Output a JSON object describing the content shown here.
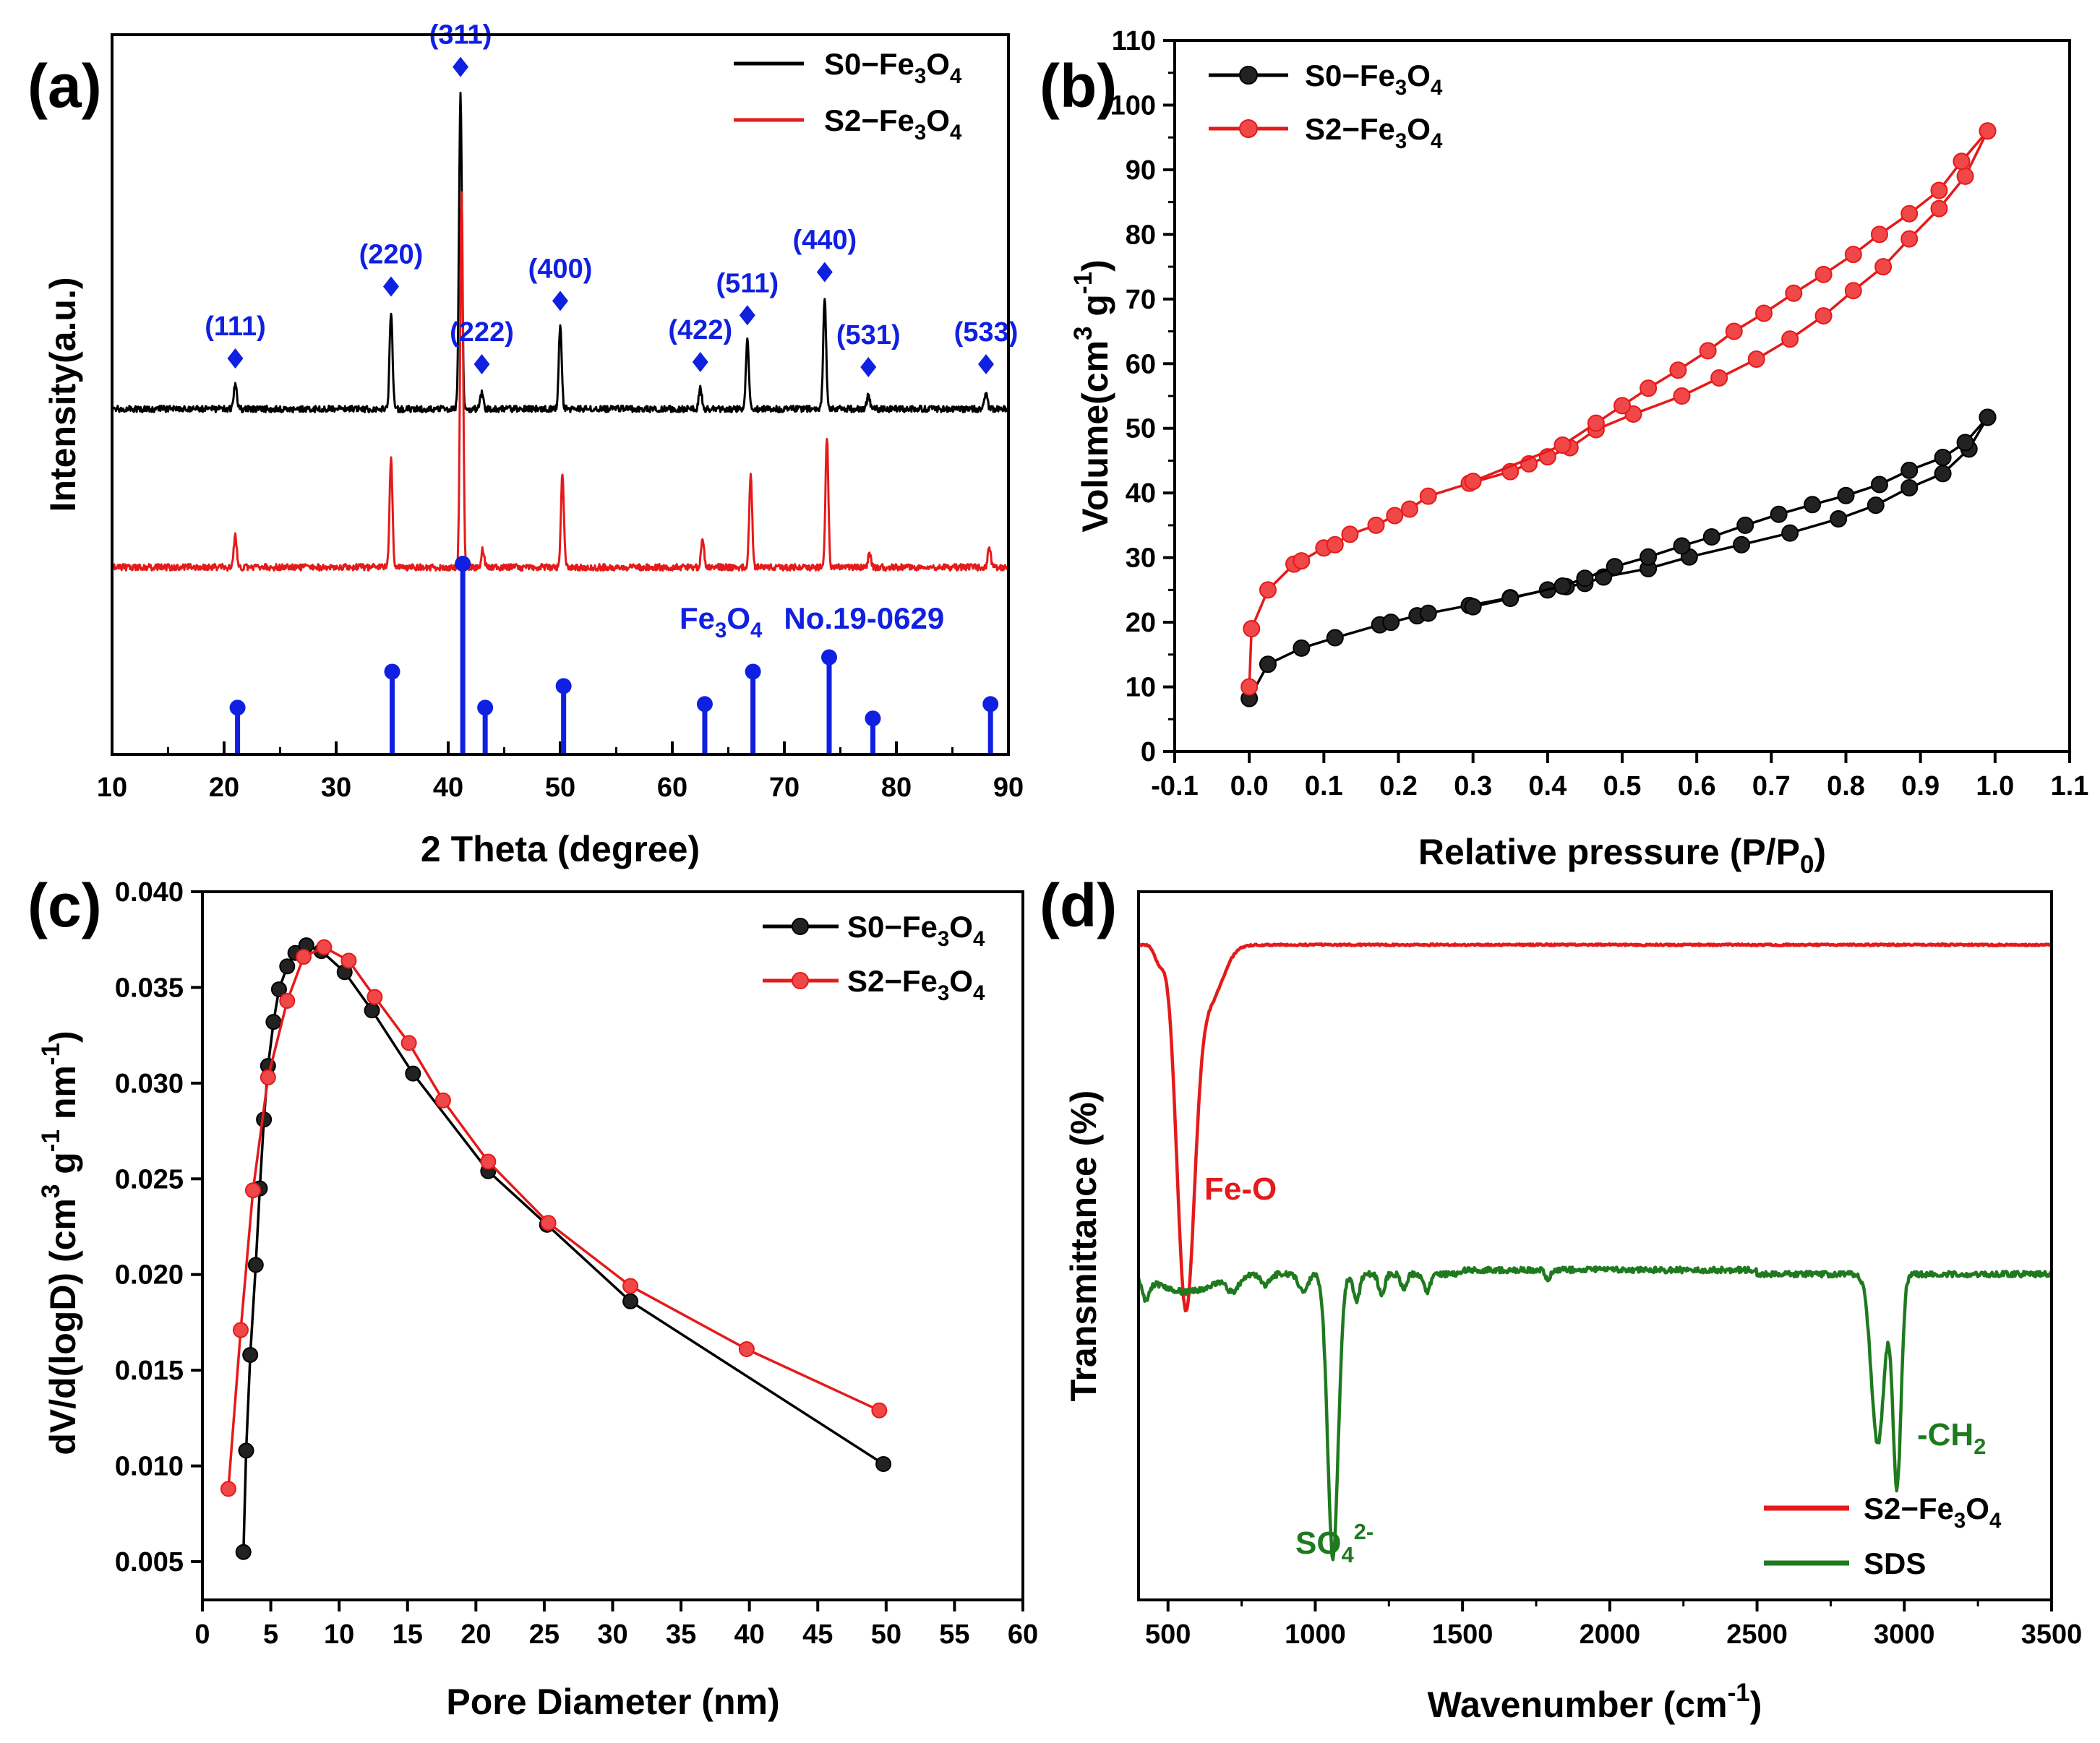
{
  "colors": {
    "black_series": "#000000",
    "red_series": "#e51a1a",
    "blue_ref": "#1020e0",
    "green_series": "#1f7a1f",
    "axis": "#000000",
    "background": "#ffffff"
  },
  "chart_data": [
    {
      "panel": "(a)",
      "type": "line",
      "title": "",
      "xlabel": "2 Theta (degree)",
      "ylabel": "Intensity(a.u.)",
      "xlim": [
        10,
        90
      ],
      "ylim": [
        0,
        100
      ],
      "xticks": [
        10,
        20,
        30,
        40,
        50,
        60,
        70,
        80,
        90
      ],
      "grid": false,
      "legend": {
        "placement": "top-right",
        "entries": [
          "S0−Fe3O4",
          "S2−Fe3O4"
        ]
      },
      "series": [
        {
          "name": "S0−Fe3O4",
          "color": "#000000",
          "baseline": 48,
          "peaks": [
            {
              "x": 21.0,
              "h": 3.5
            },
            {
              "x": 34.9,
              "h": 13.5
            },
            {
              "x": 41.1,
              "h": 44
            },
            {
              "x": 43.0,
              "h": 2.2
            },
            {
              "x": 50.0,
              "h": 11.5
            },
            {
              "x": 62.5,
              "h": 3.0
            },
            {
              "x": 66.7,
              "h": 9.5
            },
            {
              "x": 73.6,
              "h": 15.5
            },
            {
              "x": 77.5,
              "h": 1.8
            },
            {
              "x": 88.0,
              "h": 2.2
            }
          ]
        },
        {
          "name": "S2−Fe3O4",
          "color": "#e51a1a",
          "baseline": 26,
          "peaks": [
            {
              "x": 21.0,
              "h": 4.5
            },
            {
              "x": 34.9,
              "h": 15
            },
            {
              "x": 41.2,
              "h": 52
            },
            {
              "x": 43.1,
              "h": 2.5
            },
            {
              "x": 50.2,
              "h": 13
            },
            {
              "x": 62.7,
              "h": 4.2
            },
            {
              "x": 67.0,
              "h": 13
            },
            {
              "x": 73.8,
              "h": 18
            },
            {
              "x": 77.6,
              "h": 2.0
            },
            {
              "x": 88.3,
              "h": 2.8
            }
          ]
        }
      ],
      "hkl_markers": [
        {
          "label": "(111)",
          "x": 21.0
        },
        {
          "label": "(220)",
          "x": 34.9
        },
        {
          "label": "(311)",
          "x": 41.1
        },
        {
          "label": "(222)",
          "x": 43.0
        },
        {
          "label": "(400)",
          "x": 50.0
        },
        {
          "label": "(422)",
          "x": 62.5
        },
        {
          "label": "(511)",
          "x": 66.7
        },
        {
          "label": "(440)",
          "x": 73.6
        },
        {
          "label": "(531)",
          "x": 77.5
        },
        {
          "label": "(533)",
          "x": 88.0
        }
      ],
      "reference": {
        "name": "Fe3O4 No.19-0629",
        "label_main": "Fe",
        "label_sub1": "3",
        "label_mid": "O",
        "label_sub2": "4",
        "label_tail": "No.19-0629",
        "color": "#1020e0",
        "lines": [
          {
            "x": 21.2,
            "h": 6.5
          },
          {
            "x": 35.0,
            "h": 11.5
          },
          {
            "x": 41.3,
            "h": 26.5
          },
          {
            "x": 43.3,
            "h": 6.5
          },
          {
            "x": 50.3,
            "h": 9.5
          },
          {
            "x": 62.9,
            "h": 7
          },
          {
            "x": 67.2,
            "h": 11.5
          },
          {
            "x": 74.0,
            "h": 13.5
          },
          {
            "x": 77.9,
            "h": 5
          },
          {
            "x": 88.4,
            "h": 7
          }
        ]
      }
    },
    {
      "panel": "(b)",
      "type": "line",
      "title": "",
      "xlabel": "Relative pressure (P/P0)",
      "xlabel_main": "Relative pressure (P/P",
      "xlabel_sub": "0",
      "xlabel_tail": ")",
      "ylabel": "Volume(cm3 g-1)",
      "ylabel_main": "Volume(cm",
      "ylabel_sup1": "3",
      "ylabel_mid": " g",
      "ylabel_sup2": "-1",
      "ylabel_tail": ")",
      "xlim": [
        -0.1,
        1.1
      ],
      "ylim": [
        0,
        110
      ],
      "xticks": [
        -0.1,
        0.0,
        0.1,
        0.2,
        0.3,
        0.4,
        0.5,
        0.6,
        0.7,
        0.8,
        0.9,
        1.0,
        1.1
      ],
      "xtick_labels": [
        "-0.1",
        "0.0",
        "0.1",
        "0.2",
        "0.3",
        "0.4",
        "0.5",
        "0.6",
        "0.7",
        "0.8",
        "0.9",
        "1.0",
        "1.1"
      ],
      "yticks": [
        0,
        10,
        20,
        30,
        40,
        50,
        60,
        70,
        80,
        90,
        100,
        110
      ],
      "grid": false,
      "legend": {
        "placement": "top-left",
        "entries": [
          "S0−Fe3O4",
          "S2−Fe3O4"
        ]
      },
      "series": [
        {
          "name": "S0−Fe3O4",
          "color": "#000000",
          "adsorption": [
            [
              0.0,
              8.2
            ],
            [
              0.025,
              13.5
            ],
            [
              0.07,
              16.0
            ],
            [
              0.115,
              17.6
            ],
            [
              0.175,
              19.6
            ],
            [
              0.19,
              20.0
            ],
            [
              0.225,
              21.0
            ],
            [
              0.24,
              21.4
            ],
            [
              0.295,
              22.6
            ],
            [
              0.35,
              23.8
            ],
            [
              0.4,
              25.0
            ],
            [
              0.425,
              25.5
            ],
            [
              0.45,
              26.0
            ],
            [
              0.475,
              27.0
            ],
            [
              0.535,
              28.3
            ],
            [
              0.59,
              30.1
            ],
            [
              0.66,
              32.0
            ],
            [
              0.725,
              33.8
            ],
            [
              0.79,
              36.0
            ],
            [
              0.84,
              38.1
            ],
            [
              0.885,
              40.8
            ],
            [
              0.93,
              43.0
            ],
            [
              0.965,
              46.8
            ],
            [
              0.99,
              51.7
            ]
          ],
          "desorption": [
            [
              0.99,
              51.7
            ],
            [
              0.96,
              47.8
            ],
            [
              0.93,
              45.5
            ],
            [
              0.885,
              43.5
            ],
            [
              0.845,
              41.3
            ],
            [
              0.8,
              39.6
            ],
            [
              0.755,
              38.2
            ],
            [
              0.71,
              36.7
            ],
            [
              0.665,
              35.0
            ],
            [
              0.62,
              33.2
            ],
            [
              0.58,
              31.8
            ],
            [
              0.535,
              30.1
            ],
            [
              0.49,
              28.6
            ],
            [
              0.45,
              26.8
            ],
            [
              0.42,
              25.6
            ],
            [
              0.35,
              23.7
            ],
            [
              0.3,
              22.4
            ]
          ]
        },
        {
          "name": "S2−Fe3O4",
          "color": "#e51a1a",
          "adsorption": [
            [
              0.0,
              10.0
            ],
            [
              0.003,
              19.0
            ],
            [
              0.025,
              25.0
            ],
            [
              0.06,
              29.0
            ],
            [
              0.07,
              29.5
            ],
            [
              0.1,
              31.5
            ],
            [
              0.115,
              32.0
            ],
            [
              0.135,
              33.6
            ],
            [
              0.17,
              35.0
            ],
            [
              0.195,
              36.5
            ],
            [
              0.215,
              37.5
            ],
            [
              0.24,
              39.5
            ],
            [
              0.295,
              41.5
            ],
            [
              0.35,
              43.3
            ],
            [
              0.375,
              44.5
            ],
            [
              0.4,
              45.6
            ],
            [
              0.43,
              47.0
            ],
            [
              0.465,
              49.8
            ],
            [
              0.515,
              52.2
            ],
            [
              0.58,
              55.0
            ],
            [
              0.63,
              57.8
            ],
            [
              0.68,
              60.7
            ],
            [
              0.725,
              63.8
            ],
            [
              0.77,
              67.4
            ],
            [
              0.81,
              71.3
            ],
            [
              0.85,
              75.0
            ],
            [
              0.885,
              79.3
            ],
            [
              0.925,
              84.0
            ],
            [
              0.96,
              89.0
            ],
            [
              0.99,
              96.0
            ]
          ],
          "desorption": [
            [
              0.99,
              96.0
            ],
            [
              0.955,
              91.3
            ],
            [
              0.925,
              86.8
            ],
            [
              0.885,
              83.2
            ],
            [
              0.845,
              80.0
            ],
            [
              0.81,
              76.9
            ],
            [
              0.77,
              73.8
            ],
            [
              0.73,
              70.9
            ],
            [
              0.69,
              67.8
            ],
            [
              0.65,
              65.0
            ],
            [
              0.615,
              62.0
            ],
            [
              0.575,
              59.0
            ],
            [
              0.535,
              56.2
            ],
            [
              0.5,
              53.5
            ],
            [
              0.465,
              50.8
            ],
            [
              0.42,
              47.4
            ],
            [
              0.3,
              41.8
            ]
          ]
        }
      ]
    },
    {
      "panel": "(c)",
      "type": "line",
      "title": "",
      "xlabel": "Pore Diameter (nm)",
      "ylabel": "dV/d(logD) (cm3 g-1 nm-1)",
      "ylabel_main": "dV/d(logD) (cm",
      "ylabel_sup1": "3",
      "ylabel_mid1": " g",
      "ylabel_sup2": "-1",
      "ylabel_mid2": " nm",
      "ylabel_sup3": "-1",
      "ylabel_tail": ")",
      "xlim": [
        0,
        60
      ],
      "ylim": [
        0.003,
        0.04
      ],
      "xticks": [
        0,
        5,
        10,
        15,
        20,
        25,
        30,
        35,
        40,
        45,
        50,
        55,
        60
      ],
      "yticks": [
        0.005,
        0.01,
        0.015,
        0.02,
        0.025,
        0.03,
        0.035,
        0.04
      ],
      "ytick_labels": [
        "0.005",
        "0.010",
        "0.015",
        "0.020",
        "0.025",
        "0.030",
        "0.035",
        "0.040"
      ],
      "grid": false,
      "legend": {
        "placement": "top-right",
        "entries": [
          "S0−Fe3O4",
          "S2−Fe3O4"
        ]
      },
      "series": [
        {
          "name": "S0−Fe3O4",
          "color": "#000000",
          "points": [
            [
              3.0,
              0.0055
            ],
            [
              3.2,
              0.0108
            ],
            [
              3.5,
              0.0158
            ],
            [
              3.9,
              0.0205
            ],
            [
              4.2,
              0.0245
            ],
            [
              4.5,
              0.0281
            ],
            [
              4.8,
              0.0309
            ],
            [
              5.2,
              0.0332
            ],
            [
              5.6,
              0.0349
            ],
            [
              6.2,
              0.0361
            ],
            [
              6.8,
              0.0368
            ],
            [
              7.6,
              0.0372
            ],
            [
              8.7,
              0.0369
            ],
            [
              10.4,
              0.0358
            ],
            [
              12.4,
              0.0338
            ],
            [
              15.4,
              0.0305
            ],
            [
              20.9,
              0.0254
            ],
            [
              25.2,
              0.0226
            ],
            [
              31.3,
              0.0186
            ],
            [
              49.8,
              0.0101
            ]
          ]
        },
        {
          "name": "S2−Fe3O4",
          "color": "#e51a1a",
          "points": [
            [
              1.9,
              0.0088
            ],
            [
              2.8,
              0.0171
            ],
            [
              3.7,
              0.0244
            ],
            [
              4.8,
              0.0303
            ],
            [
              6.2,
              0.0343
            ],
            [
              7.4,
              0.0366
            ],
            [
              8.9,
              0.0371
            ],
            [
              10.7,
              0.0364
            ],
            [
              12.6,
              0.0345
            ],
            [
              15.1,
              0.0321
            ],
            [
              17.6,
              0.0291
            ],
            [
              20.9,
              0.0259
            ],
            [
              25.3,
              0.0227
            ],
            [
              31.3,
              0.0194
            ],
            [
              39.8,
              0.0161
            ],
            [
              49.5,
              0.0129
            ]
          ]
        }
      ]
    },
    {
      "panel": "(d)",
      "type": "line",
      "title": "",
      "xlabel": "Wavenumber (cm-1)",
      "xlabel_main": "Wavenumber (cm",
      "xlabel_sup": "-1",
      "xlabel_tail": ")",
      "ylabel": "Transmittance (%)",
      "xlim": [
        400,
        3500
      ],
      "ylim": [
        0,
        100
      ],
      "xticks": [
        500,
        1000,
        1500,
        2000,
        2500,
        3000,
        3500
      ],
      "grid": false,
      "legend": {
        "placement": "bottom-right",
        "entries": [
          "S2−Fe3O4",
          "SDS"
        ]
      },
      "series": [
        {
          "name": "S2−Fe3O4",
          "color": "#e51a1a",
          "baseline": 92.5,
          "bands": [
            {
              "x": 470,
              "depth": 2.5,
              "width": 15
            },
            {
              "x": 560,
              "depth": 50,
              "width": 30
            },
            {
              "x": 640,
              "depth": 8,
              "width": 45
            }
          ]
        },
        {
          "name": "SDS",
          "color": "#1f7a1f",
          "baseline": 46,
          "bands": [
            {
              "x": 425,
              "depth": 3,
              "width": 12
            },
            {
              "x": 560,
              "depth": 2.5,
              "width": 90
            },
            {
              "x": 720,
              "depth": 2,
              "width": 20
            },
            {
              "x": 830,
              "depth": 1.5,
              "width": 15
            },
            {
              "x": 960,
              "depth": 2.5,
              "width": 15
            },
            {
              "x": 1060,
              "depth": 40,
              "width": 18
            },
            {
              "x": 1140,
              "depth": 4,
              "width": 10
            },
            {
              "x": 1225,
              "depth": 3,
              "width": 10
            },
            {
              "x": 1300,
              "depth": 2,
              "width": 10
            },
            {
              "x": 1380,
              "depth": 2.5,
              "width": 10
            },
            {
              "x": 1790,
              "depth": 1.5,
              "width": 8
            },
            {
              "x": 2910,
              "depth": 24,
              "width": 22
            },
            {
              "x": 2975,
              "depth": 30,
              "width": 14
            }
          ]
        }
      ],
      "annotations": [
        {
          "text": "Fe-O",
          "x": 560,
          "color": "#e51a1a"
        },
        {
          "text": "SO42-",
          "main": "SO",
          "sub": "4",
          "sup": "2-",
          "x": 1060,
          "color": "#1f7a1f"
        },
        {
          "text": "-CH2",
          "main": "-CH",
          "sub": "2",
          "x": 2975,
          "color": "#1f7a1f"
        }
      ]
    }
  ]
}
